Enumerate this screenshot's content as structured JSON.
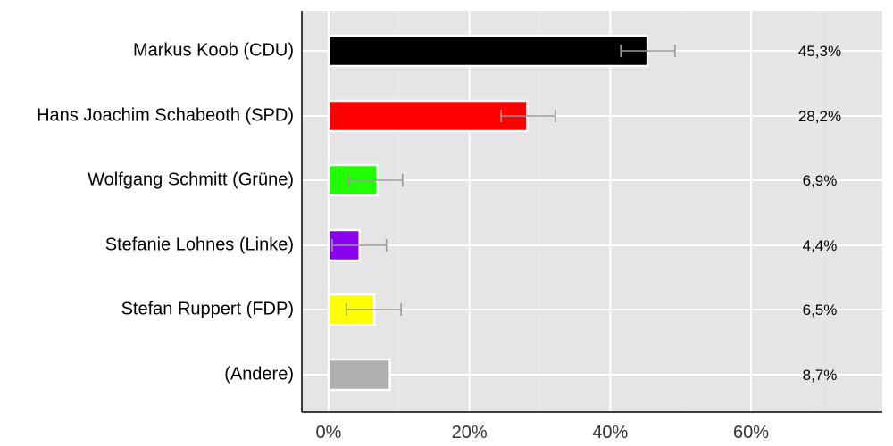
{
  "chart_data": {
    "type": "bar",
    "orientation": "horizontal",
    "title": "",
    "xlabel": "",
    "ylabel": "",
    "xlim": [
      -3.8,
      78.7
    ],
    "x_ticks": [
      0,
      20,
      40,
      60
    ],
    "x_tick_labels": [
      "0%",
      "20%",
      "40%",
      "60%"
    ],
    "grid": true,
    "categories": [
      "Markus Koob (CDU)",
      "Hans Joachim Schabeoth (SPD)",
      "Wolfgang Schmitt (Grüne)",
      "Stefanie Lohnes (Linke)",
      "Stefan Ruppert (FDP)",
      "(Andere)"
    ],
    "values": [
      45.3,
      28.2,
      6.9,
      4.4,
      6.5,
      8.7
    ],
    "value_labels": [
      "45,3%",
      "28,2%",
      "6,9%",
      "4,4%",
      "6,5%",
      "8,7%"
    ],
    "error_bars": [
      [
        41.5,
        49.2
      ],
      [
        24.5,
        32.2
      ],
      [
        2.8,
        10.5
      ],
      [
        0.5,
        8.2
      ],
      [
        2.5,
        10.3
      ],
      null
    ],
    "colors": [
      "#000000",
      "#ff0000",
      "#22ff00",
      "#8800ee",
      "#ffff00",
      "#b0b0b0"
    ]
  },
  "style": {
    "panel_bg": "#e5e5e5",
    "grid_color": "#ffffff",
    "errorbar_color": "#999999",
    "axis_color": "#000000",
    "tick_label_color": "#333333"
  }
}
